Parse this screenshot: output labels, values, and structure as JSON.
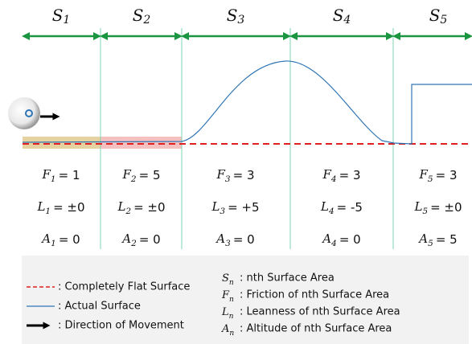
{
  "segments": [
    {
      "symbol": {
        "letter": "S",
        "index": "1"
      },
      "friction": {
        "letter": "F",
        "index": "1",
        "value": "= 1"
      },
      "leanness": {
        "letter": "L",
        "index": "1",
        "value": "= ±0"
      },
      "altitude": {
        "letter": "A",
        "index": "1",
        "value": "= 0"
      }
    },
    {
      "symbol": {
        "letter": "S",
        "index": "2"
      },
      "friction": {
        "letter": "F",
        "index": "2",
        "value": "= 5"
      },
      "leanness": {
        "letter": "L",
        "index": "2",
        "value": "= ±0"
      },
      "altitude": {
        "letter": "A",
        "index": "2",
        "value": "= 0"
      }
    },
    {
      "symbol": {
        "letter": "S",
        "index": "3"
      },
      "friction": {
        "letter": "F",
        "index": "3",
        "value": "= 3"
      },
      "leanness": {
        "letter": "L",
        "index": "3",
        "value": "= +5"
      },
      "altitude": {
        "letter": "A",
        "index": "3",
        "value": "= 0"
      }
    },
    {
      "symbol": {
        "letter": "S",
        "index": "4"
      },
      "friction": {
        "letter": "F",
        "index": "4",
        "value": "= 3"
      },
      "leanness": {
        "letter": "L",
        "index": "4",
        "value": "= -5"
      },
      "altitude": {
        "letter": "A",
        "index": "4",
        "value": "= 0"
      }
    },
    {
      "symbol": {
        "letter": "S",
        "index": "5"
      },
      "friction": {
        "letter": "F",
        "index": "5",
        "value": "= 3"
      },
      "leanness": {
        "letter": "L",
        "index": "5",
        "value": "= ±0"
      },
      "altitude": {
        "letter": "A",
        "index": "5",
        "value": "= 5"
      }
    }
  ],
  "legend": {
    "lines": [
      ": Completely Flat Surface",
      ": Actual Surface",
      ": Direction of Movement"
    ],
    "symbols": [
      {
        "letter": "S",
        "index": "n",
        "text": ": nth Surface Area"
      },
      {
        "letter": "F",
        "index": "n",
        "text": ": Friction of nth Surface Area"
      },
      {
        "letter": "L",
        "index": "n",
        "text": ": Leanness of nth Surface Area"
      },
      {
        "letter": "A",
        "index": "n",
        "text": ": Altitude of nth Surface Area"
      }
    ]
  }
}
